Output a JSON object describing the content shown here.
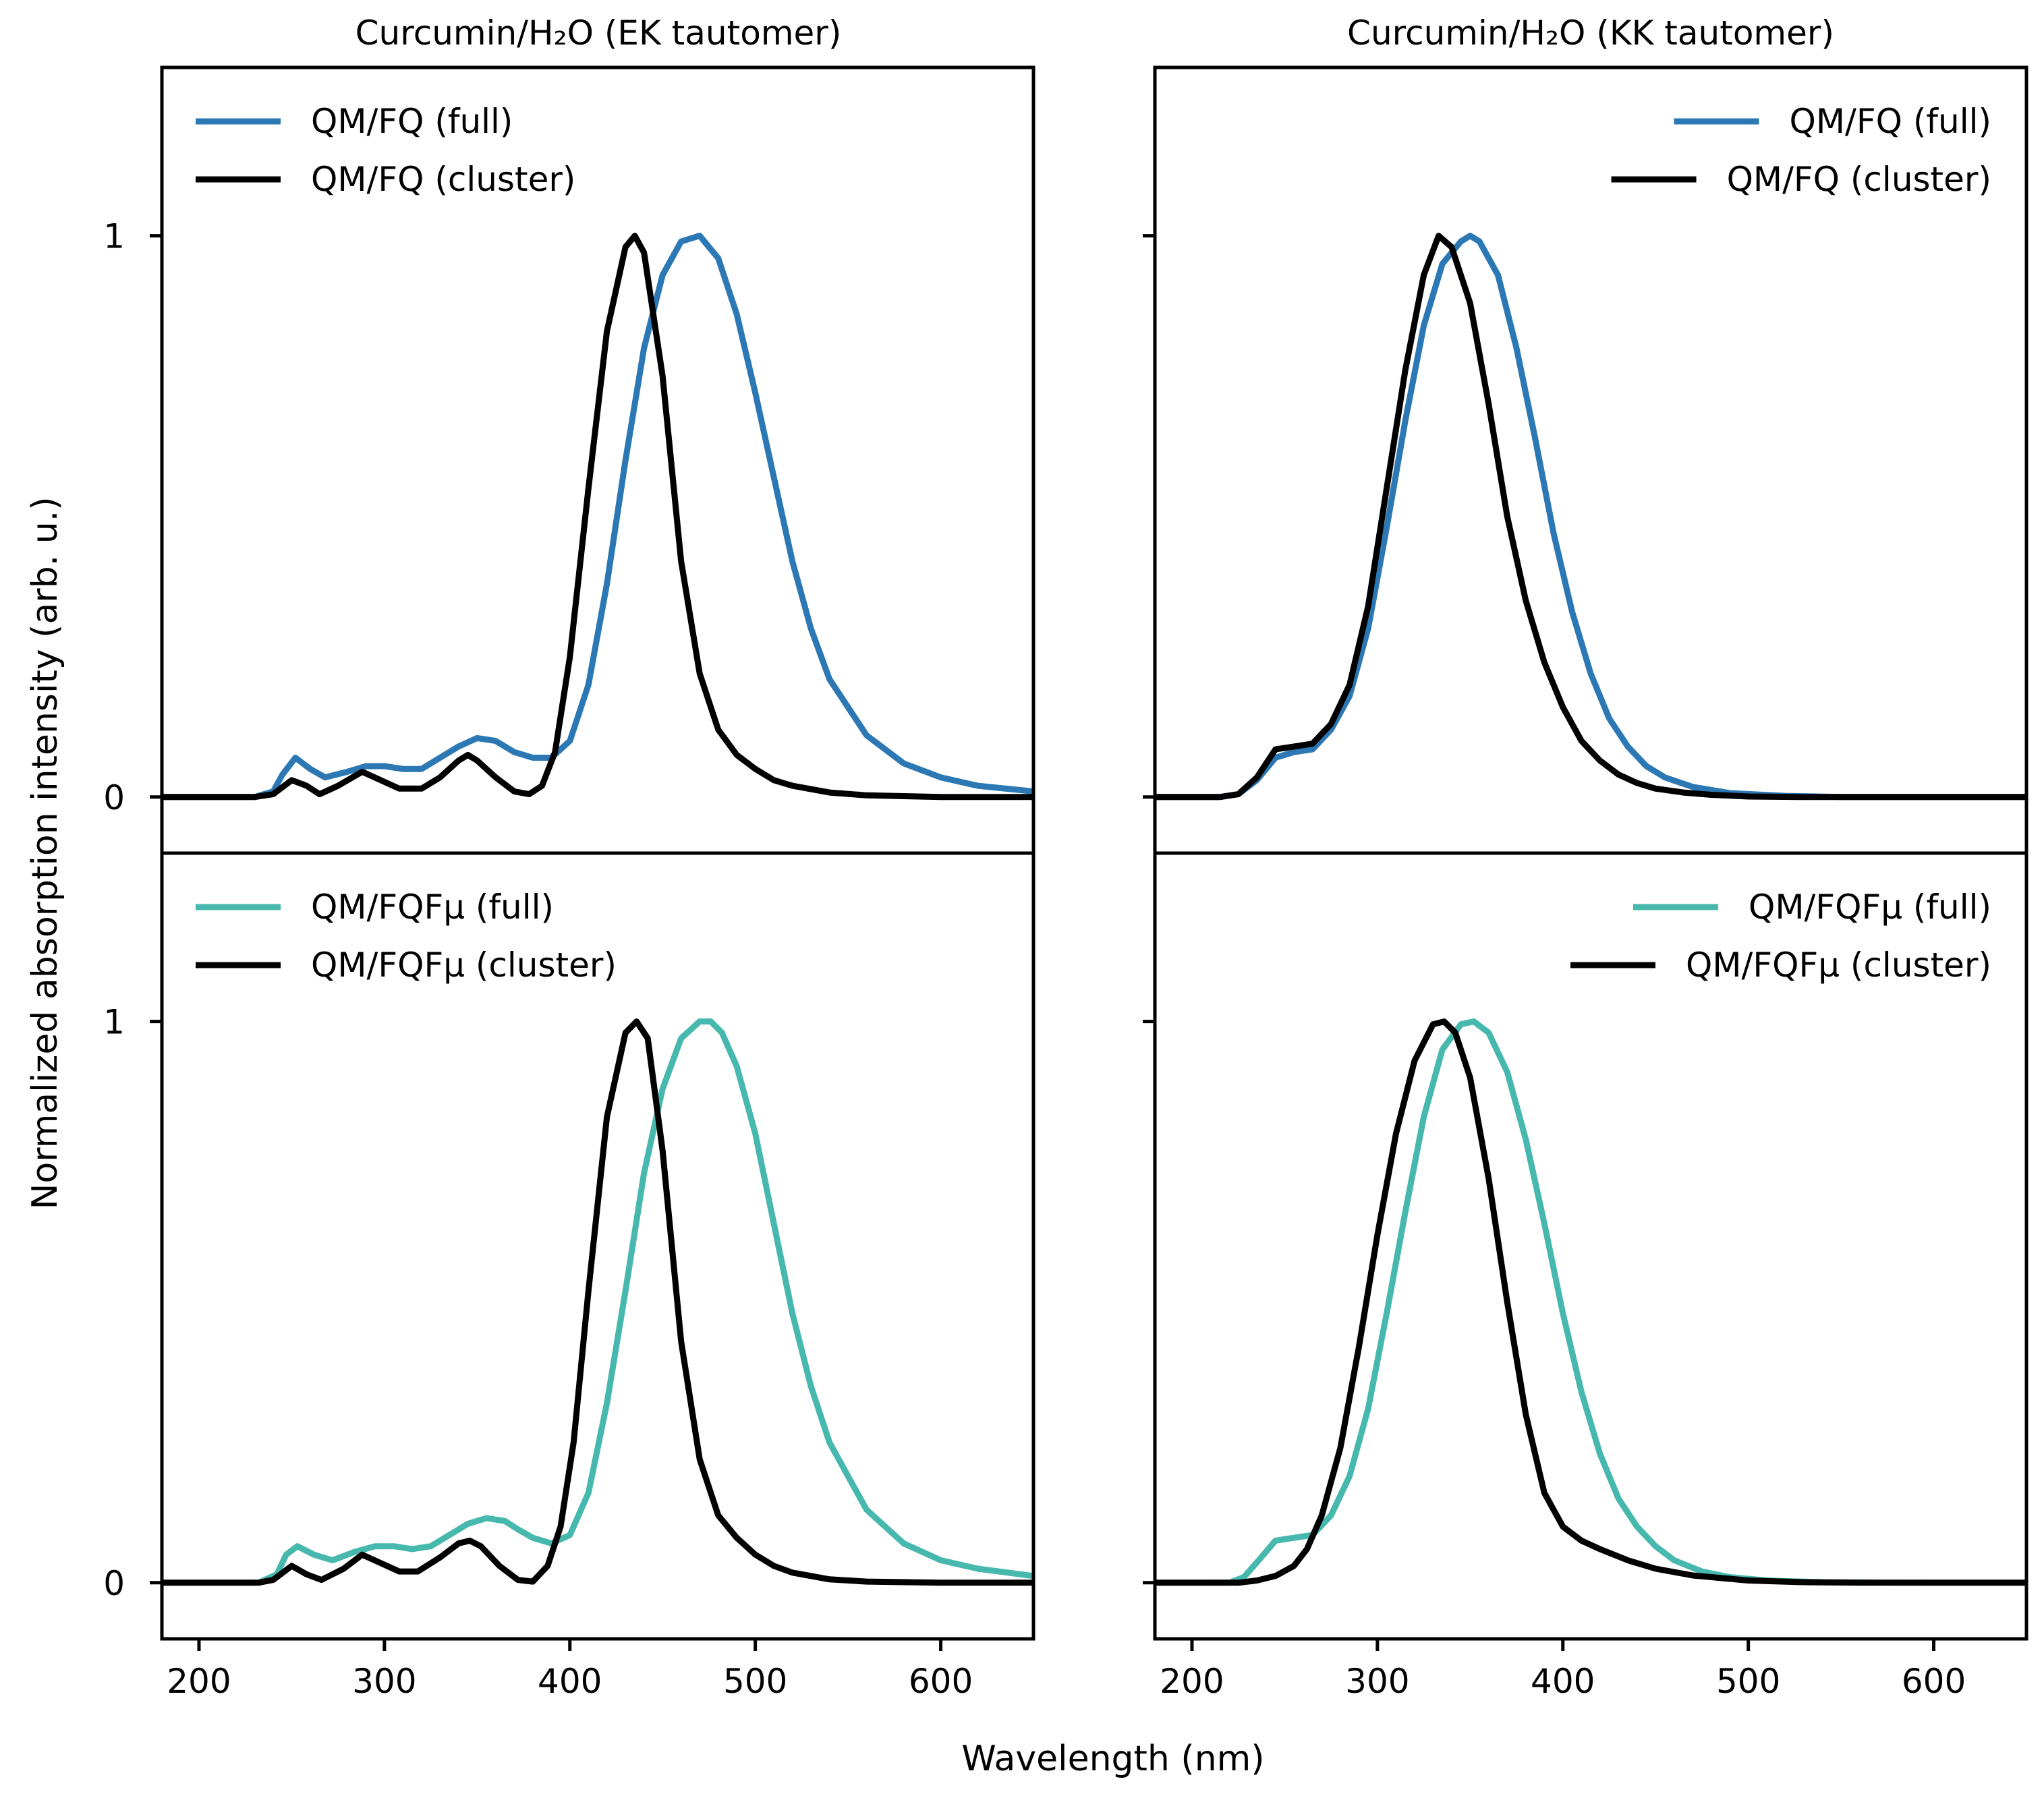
{
  "figure": {
    "xlabel": "Wavelength (nm)",
    "ylabel": "Normalized absorption intensity (arb. u.)",
    "column_titles": [
      "Curcumin/H₂O (EK tautomer)",
      "Curcumin/H₂O (KK tautomer)"
    ]
  },
  "colors": {
    "fq": "#2b78b4",
    "fqfmu": "#46b8ad",
    "cluster": "#000000"
  },
  "chart_data": [
    {
      "type": "line",
      "panel": "top-left",
      "title": "Curcumin/H₂O (EK tautomer)",
      "xlim": [
        180,
        650
      ],
      "ylim": [
        -0.1,
        1.3
      ],
      "xticks": [
        200,
        300,
        400,
        500,
        600
      ],
      "yticks": [
        0,
        1
      ],
      "legend_loc": "upper-left",
      "series": [
        {
          "name": "QM/FQ (full)",
          "color_key": "fq",
          "x": [
            180,
            230,
            240,
            245,
            252,
            260,
            268,
            280,
            290,
            300,
            310,
            320,
            330,
            340,
            350,
            360,
            370,
            380,
            390,
            400,
            410,
            420,
            430,
            440,
            450,
            460,
            470,
            480,
            490,
            500,
            510,
            520,
            530,
            540,
            560,
            580,
            600,
            620,
            650
          ],
          "y": [
            0,
            0,
            0.01,
            0.04,
            0.07,
            0.05,
            0.035,
            0.045,
            0.055,
            0.055,
            0.05,
            0.05,
            0.07,
            0.09,
            0.105,
            0.1,
            0.08,
            0.07,
            0.07,
            0.1,
            0.2,
            0.38,
            0.6,
            0.8,
            0.93,
            0.99,
            1.0,
            0.96,
            0.86,
            0.72,
            0.57,
            0.42,
            0.3,
            0.21,
            0.11,
            0.06,
            0.035,
            0.02,
            0.01
          ]
        },
        {
          "name": "QM/FQ (cluster)",
          "color_key": "cluster",
          "x": [
            180,
            230,
            240,
            250,
            258,
            265,
            275,
            288,
            298,
            308,
            320,
            330,
            340,
            345,
            350,
            360,
            370,
            378,
            385,
            392,
            400,
            410,
            420,
            430,
            435,
            440,
            450,
            460,
            470,
            480,
            490,
            500,
            510,
            520,
            540,
            560,
            600,
            650
          ],
          "y": [
            0,
            0,
            0.005,
            0.03,
            0.02,
            0.005,
            0.02,
            0.045,
            0.03,
            0.015,
            0.015,
            0.035,
            0.065,
            0.075,
            0.065,
            0.035,
            0.01,
            0.005,
            0.02,
            0.08,
            0.25,
            0.55,
            0.83,
            0.98,
            1.0,
            0.97,
            0.75,
            0.42,
            0.22,
            0.12,
            0.075,
            0.05,
            0.03,
            0.02,
            0.008,
            0.003,
            0,
            0
          ]
        }
      ]
    },
    {
      "type": "line",
      "panel": "top-right",
      "title": "Curcumin/H₂O (KK tautomer)",
      "xlim": [
        180,
        650
      ],
      "ylim": [
        -0.1,
        1.3
      ],
      "xticks": [
        200,
        300,
        400,
        500,
        600
      ],
      "yticks": [
        0,
        1
      ],
      "legend_loc": "upper-right",
      "series": [
        {
          "name": "QM/FQ (full)",
          "color_key": "fq",
          "x": [
            180,
            215,
            225,
            235,
            245,
            255,
            265,
            275,
            285,
            295,
            305,
            315,
            325,
            335,
            345,
            350,
            355,
            365,
            375,
            385,
            395,
            405,
            415,
            425,
            435,
            445,
            455,
            470,
            490,
            520,
            550,
            600,
            650
          ],
          "y": [
            0,
            0,
            0.005,
            0.03,
            0.07,
            0.08,
            0.085,
            0.12,
            0.18,
            0.3,
            0.48,
            0.67,
            0.84,
            0.95,
            0.99,
            1.0,
            0.99,
            0.93,
            0.8,
            0.64,
            0.47,
            0.33,
            0.22,
            0.14,
            0.09,
            0.055,
            0.035,
            0.018,
            0.007,
            0.002,
            0,
            0,
            0
          ]
        },
        {
          "name": "QM/FQ (cluster)",
          "color_key": "cluster",
          "x": [
            180,
            215,
            225,
            235,
            245,
            255,
            265,
            275,
            285,
            295,
            305,
            315,
            325,
            333,
            340,
            350,
            360,
            370,
            380,
            390,
            400,
            410,
            420,
            430,
            440,
            450,
            465,
            480,
            500,
            530,
            600,
            650
          ],
          "y": [
            0,
            0,
            0.005,
            0.035,
            0.085,
            0.09,
            0.095,
            0.13,
            0.2,
            0.34,
            0.55,
            0.76,
            0.93,
            1.0,
            0.98,
            0.88,
            0.7,
            0.5,
            0.35,
            0.24,
            0.16,
            0.1,
            0.065,
            0.04,
            0.025,
            0.015,
            0.008,
            0.004,
            0.001,
            0,
            0,
            0
          ]
        }
      ]
    },
    {
      "type": "line",
      "panel": "bottom-left",
      "title": "",
      "xlim": [
        180,
        650
      ],
      "ylim": [
        -0.1,
        1.3
      ],
      "xticks": [
        200,
        300,
        400,
        500,
        600
      ],
      "yticks": [
        0,
        1
      ],
      "legend_loc": "upper-left",
      "series": [
        {
          "name": "QM/FQFμ (full)",
          "color_key": "fqfmu",
          "x": [
            180,
            232,
            242,
            247,
            253,
            262,
            272,
            284,
            295,
            305,
            315,
            325,
            335,
            345,
            355,
            365,
            372,
            380,
            390,
            400,
            410,
            420,
            430,
            440,
            450,
            460,
            470,
            476,
            482,
            490,
            500,
            510,
            520,
            530,
            540,
            560,
            580,
            600,
            620,
            650
          ],
          "y": [
            0,
            0,
            0.015,
            0.05,
            0.065,
            0.05,
            0.04,
            0.055,
            0.065,
            0.065,
            0.06,
            0.065,
            0.085,
            0.105,
            0.115,
            0.11,
            0.095,
            0.08,
            0.07,
            0.085,
            0.16,
            0.32,
            0.52,
            0.73,
            0.88,
            0.97,
            1.0,
            1.0,
            0.98,
            0.92,
            0.8,
            0.64,
            0.48,
            0.35,
            0.25,
            0.13,
            0.07,
            0.04,
            0.025,
            0.012
          ]
        },
        {
          "name": "QM/FQFμ (cluster)",
          "color_key": "cluster",
          "x": [
            180,
            232,
            240,
            250,
            258,
            266,
            278,
            288,
            298,
            308,
            318,
            330,
            340,
            346,
            352,
            362,
            372,
            380,
            388,
            395,
            402,
            410,
            420,
            430,
            436,
            442,
            450,
            460,
            470,
            480,
            490,
            500,
            510,
            520,
            540,
            560,
            600,
            650
          ],
          "y": [
            0,
            0,
            0.005,
            0.03,
            0.015,
            0.005,
            0.025,
            0.05,
            0.035,
            0.02,
            0.02,
            0.045,
            0.07,
            0.075,
            0.065,
            0.03,
            0.005,
            0.002,
            0.03,
            0.1,
            0.25,
            0.52,
            0.83,
            0.98,
            1.0,
            0.97,
            0.77,
            0.43,
            0.22,
            0.12,
            0.08,
            0.05,
            0.03,
            0.018,
            0.006,
            0.002,
            0,
            0
          ]
        }
      ]
    },
    {
      "type": "line",
      "panel": "bottom-right",
      "title": "",
      "xlim": [
        180,
        650
      ],
      "ylim": [
        -0.1,
        1.3
      ],
      "xticks": [
        200,
        300,
        400,
        500,
        600
      ],
      "yticks": [
        0,
        1
      ],
      "legend_loc": "upper-right",
      "series": [
        {
          "name": "QM/FQFμ (full)",
          "color_key": "fqfmu",
          "x": [
            180,
            220,
            228,
            236,
            245,
            255,
            265,
            275,
            285,
            295,
            305,
            315,
            325,
            335,
            345,
            352,
            360,
            370,
            380,
            390,
            400,
            410,
            420,
            430,
            440,
            450,
            460,
            475,
            490,
            510,
            540,
            600,
            650
          ],
          "y": [
            0,
            0,
            0.01,
            0.04,
            0.075,
            0.08,
            0.085,
            0.12,
            0.19,
            0.31,
            0.48,
            0.66,
            0.83,
            0.95,
            0.995,
            1.0,
            0.98,
            0.91,
            0.79,
            0.64,
            0.48,
            0.34,
            0.23,
            0.15,
            0.1,
            0.065,
            0.04,
            0.02,
            0.01,
            0.004,
            0.001,
            0,
            0
          ]
        },
        {
          "name": "QM/FQFμ (cluster)",
          "color_key": "cluster",
          "x": [
            180,
            225,
            235,
            245,
            255,
            262,
            270,
            280,
            290,
            300,
            310,
            320,
            330,
            336,
            342,
            350,
            360,
            370,
            380,
            390,
            400,
            410,
            420,
            435,
            450,
            470,
            500,
            530,
            560,
            600,
            650
          ],
          "y": [
            0,
            0,
            0.004,
            0.012,
            0.03,
            0.06,
            0.12,
            0.24,
            0.42,
            0.62,
            0.8,
            0.93,
            0.995,
            1.0,
            0.98,
            0.9,
            0.72,
            0.5,
            0.3,
            0.16,
            0.1,
            0.075,
            0.06,
            0.04,
            0.025,
            0.013,
            0.004,
            0.001,
            0,
            0,
            0
          ]
        }
      ]
    }
  ]
}
